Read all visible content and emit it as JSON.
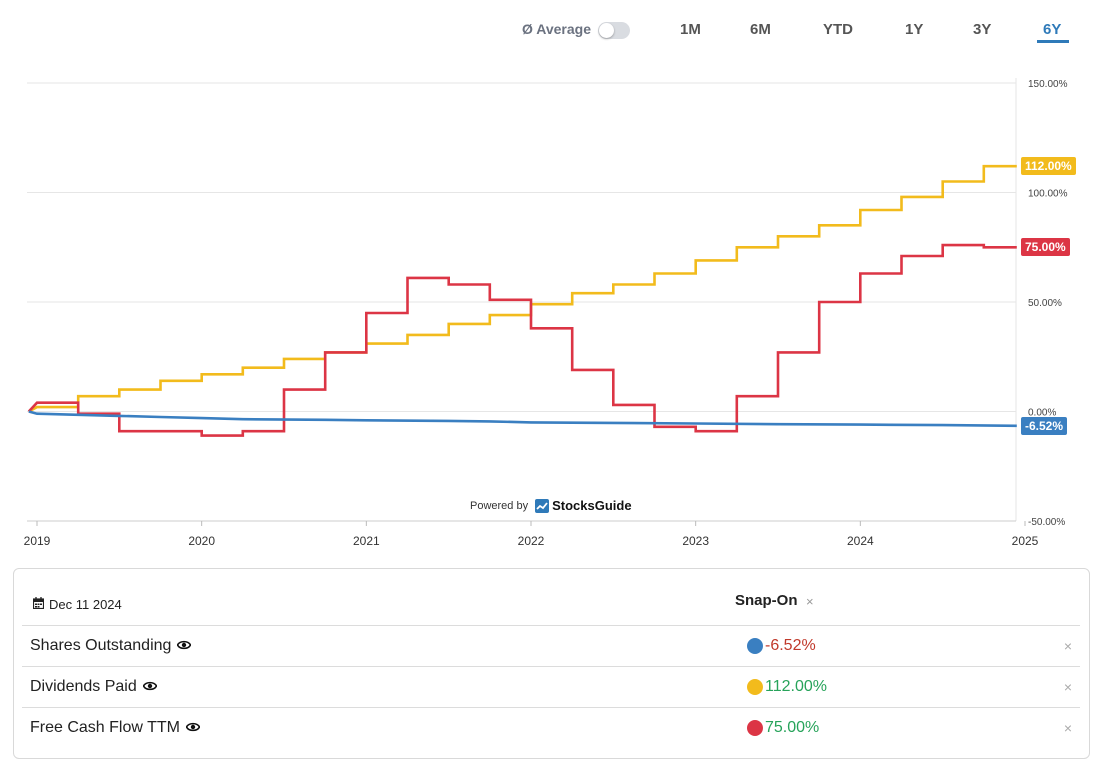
{
  "controls": {
    "average_label": "Ø Average",
    "average_on": false,
    "ranges": [
      "1M",
      "6M",
      "YTD",
      "1Y",
      "3Y",
      "6Y"
    ],
    "active_range": "6Y",
    "accent": "#2f7ab9"
  },
  "powered": {
    "prefix": "Powered by",
    "brand": "StocksGuide"
  },
  "chart_data": {
    "type": "line",
    "x_ticks": [
      "2019",
      "2020",
      "2021",
      "2022",
      "2023",
      "2024",
      "2025"
    ],
    "xlim": [
      2019.0,
      2025.0
    ],
    "y_ticks": [
      "150.00%",
      "100.00%",
      "50.00%",
      "0.00%",
      "-50.00%"
    ],
    "ylim": [
      -50,
      150
    ],
    "grid": true,
    "series": [
      {
        "name": "Dividends Paid",
        "color": "#f2bb1c",
        "label": "112.00%",
        "points": [
          [
            2018.95,
            0
          ],
          [
            2019.0,
            2
          ],
          [
            2019.25,
            2
          ],
          [
            2019.25,
            7
          ],
          [
            2019.5,
            7
          ],
          [
            2019.5,
            10
          ],
          [
            2019.75,
            10
          ],
          [
            2019.75,
            14
          ],
          [
            2020.0,
            14
          ],
          [
            2020.0,
            17
          ],
          [
            2020.25,
            17
          ],
          [
            2020.25,
            20
          ],
          [
            2020.5,
            20
          ],
          [
            2020.5,
            24
          ],
          [
            2020.75,
            24
          ],
          [
            2020.75,
            27
          ],
          [
            2021.0,
            27
          ],
          [
            2021.0,
            31
          ],
          [
            2021.25,
            31
          ],
          [
            2021.25,
            35
          ],
          [
            2021.5,
            35
          ],
          [
            2021.5,
            40
          ],
          [
            2021.75,
            40
          ],
          [
            2021.75,
            44
          ],
          [
            2022.0,
            44
          ],
          [
            2022.0,
            49
          ],
          [
            2022.25,
            49
          ],
          [
            2022.25,
            54
          ],
          [
            2022.5,
            54
          ],
          [
            2022.5,
            58
          ],
          [
            2022.75,
            58
          ],
          [
            2022.75,
            63
          ],
          [
            2023.0,
            63
          ],
          [
            2023.0,
            69
          ],
          [
            2023.25,
            69
          ],
          [
            2023.25,
            75
          ],
          [
            2023.5,
            75
          ],
          [
            2023.5,
            80
          ],
          [
            2023.75,
            80
          ],
          [
            2023.75,
            85
          ],
          [
            2024.0,
            85
          ],
          [
            2024.0,
            92
          ],
          [
            2024.25,
            92
          ],
          [
            2024.25,
            98
          ],
          [
            2024.5,
            98
          ],
          [
            2024.5,
            105
          ],
          [
            2024.75,
            105
          ],
          [
            2024.75,
            112
          ],
          [
            2024.95,
            112
          ]
        ]
      },
      {
        "name": "Free Cash Flow TTM",
        "color": "#dc3545",
        "label": "75.00%",
        "points": [
          [
            2018.95,
            0
          ],
          [
            2019.0,
            4
          ],
          [
            2019.25,
            4
          ],
          [
            2019.25,
            -1
          ],
          [
            2019.5,
            -1
          ],
          [
            2019.5,
            -9
          ],
          [
            2019.75,
            -9
          ],
          [
            2020.0,
            -9
          ],
          [
            2020.0,
            -11
          ],
          [
            2020.25,
            -11
          ],
          [
            2020.25,
            -9
          ],
          [
            2020.5,
            -9
          ],
          [
            2020.5,
            10
          ],
          [
            2020.75,
            10
          ],
          [
            2020.75,
            27
          ],
          [
            2021.0,
            27
          ],
          [
            2021.0,
            45
          ],
          [
            2021.25,
            45
          ],
          [
            2021.25,
            61
          ],
          [
            2021.5,
            61
          ],
          [
            2021.5,
            58
          ],
          [
            2021.75,
            58
          ],
          [
            2021.75,
            51
          ],
          [
            2022.0,
            51
          ],
          [
            2022.0,
            38
          ],
          [
            2022.25,
            38
          ],
          [
            2022.25,
            19
          ],
          [
            2022.5,
            19
          ],
          [
            2022.5,
            3
          ],
          [
            2022.75,
            3
          ],
          [
            2022.75,
            -7
          ],
          [
            2023.0,
            -7
          ],
          [
            2023.0,
            -9
          ],
          [
            2023.25,
            -9
          ],
          [
            2023.25,
            7
          ],
          [
            2023.5,
            7
          ],
          [
            2023.5,
            27
          ],
          [
            2023.75,
            27
          ],
          [
            2023.75,
            50
          ],
          [
            2024.0,
            50
          ],
          [
            2024.0,
            63
          ],
          [
            2024.25,
            63
          ],
          [
            2024.25,
            71
          ],
          [
            2024.5,
            71
          ],
          [
            2024.5,
            76
          ],
          [
            2024.75,
            76
          ],
          [
            2024.75,
            75
          ],
          [
            2024.95,
            75
          ]
        ]
      },
      {
        "name": "Shares Outstanding",
        "color": "#3a7fc1",
        "label": "-6.52%",
        "points": [
          [
            2018.95,
            0
          ],
          [
            2019.0,
            -1
          ],
          [
            2019.5,
            -2
          ],
          [
            2019.75,
            -2.5
          ],
          [
            2020.0,
            -3
          ],
          [
            2020.25,
            -3.5
          ],
          [
            2020.75,
            -3.8
          ],
          [
            2021.0,
            -4
          ],
          [
            2021.5,
            -4.3
          ],
          [
            2021.75,
            -4.5
          ],
          [
            2022.0,
            -5
          ],
          [
            2022.5,
            -5.2
          ],
          [
            2023.0,
            -5.5
          ],
          [
            2023.5,
            -5.8
          ],
          [
            2024.0,
            -6
          ],
          [
            2024.5,
            -6.2
          ],
          [
            2024.95,
            -6.52
          ]
        ]
      }
    ]
  },
  "table": {
    "date": "Dec 11 2024",
    "company": "Snap-On",
    "close_symbol": "×",
    "rows": [
      {
        "label": "Shares Outstanding",
        "value": "-6.52%",
        "dot_color": "#3a7fc1",
        "value_color": "#c0392b"
      },
      {
        "label": "Dividends Paid",
        "value": "112.00%",
        "dot_color": "#f2bb1c",
        "value_color": "#27a35a"
      },
      {
        "label": "Free Cash Flow TTM",
        "value": "75.00%",
        "dot_color": "#dc3545",
        "value_color": "#27a35a"
      }
    ]
  }
}
